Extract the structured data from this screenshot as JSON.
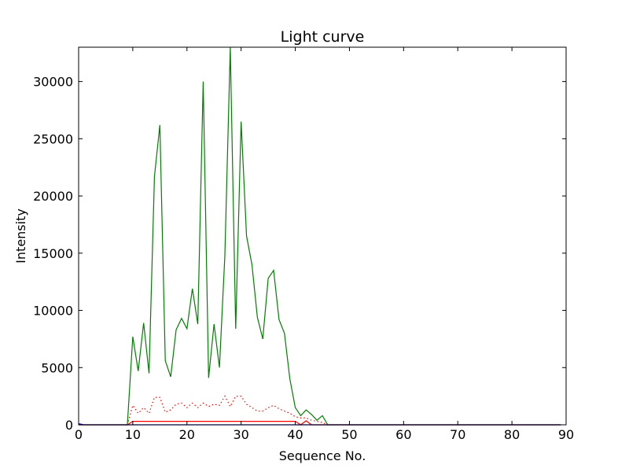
{
  "chart_data": {
    "type": "line",
    "title": "Light curve",
    "xlabel": "Sequence No.",
    "ylabel": "Intensity",
    "xlim": [
      0,
      90
    ],
    "ylim": [
      0,
      33000
    ],
    "xticks": [
      0,
      10,
      20,
      30,
      40,
      50,
      60,
      70,
      80,
      90
    ],
    "yticks": [
      0,
      5000,
      10000,
      15000,
      20000,
      25000,
      30000
    ],
    "grid": false,
    "legend": "none",
    "series": [
      {
        "color": "#008000",
        "style": "solid",
        "x": [
          0,
          1,
          2,
          3,
          4,
          5,
          6,
          7,
          8,
          9,
          10,
          11,
          12,
          13,
          14,
          15,
          16,
          17,
          18,
          19,
          20,
          21,
          22,
          23,
          24,
          25,
          26,
          27,
          28,
          29,
          30,
          31,
          32,
          33,
          34,
          35,
          36,
          37,
          38,
          39,
          40,
          41,
          42,
          43,
          44,
          45,
          46,
          47,
          48,
          49,
          50,
          51,
          52,
          53,
          54,
          55,
          56,
          57,
          58,
          59,
          60,
          61,
          62,
          63,
          64,
          65,
          66,
          67,
          68,
          69,
          70,
          71,
          72,
          73,
          74,
          75,
          76,
          77,
          78,
          79,
          80,
          81,
          82,
          83,
          84,
          85,
          86,
          87,
          88,
          89
        ],
        "y": [
          0,
          0,
          0,
          0,
          0,
          0,
          0,
          0,
          0,
          0,
          7700,
          4700,
          8900,
          4500,
          21700,
          26200,
          5600,
          4200,
          8300,
          9300,
          8400,
          11900,
          8800,
          30000,
          4100,
          8800,
          5000,
          14800,
          33000,
          8400,
          26500,
          16500,
          14000,
          9400,
          7500,
          12800,
          13500,
          9200,
          8000,
          4000,
          1500,
          800,
          1300,
          900,
          400,
          800,
          0,
          0,
          0,
          0,
          0,
          0,
          0,
          0,
          0,
          0,
          0,
          0,
          0,
          0,
          0,
          0,
          0,
          0,
          0,
          0,
          0,
          0,
          0,
          0,
          0,
          0,
          0,
          0,
          0,
          0,
          0,
          0,
          0,
          0,
          0,
          0,
          0,
          0,
          0,
          0,
          0,
          0,
          0,
          0
        ]
      },
      {
        "color": "#ff0000",
        "style": "dotted",
        "x": [
          9,
          10,
          11,
          12,
          13,
          14,
          15,
          16,
          17,
          18,
          19,
          20,
          21,
          22,
          23,
          24,
          25,
          26,
          27,
          28,
          29,
          30,
          31,
          32,
          33,
          34,
          35,
          36,
          37,
          38,
          39,
          40,
          41,
          42,
          43,
          44,
          45,
          46
        ],
        "y": [
          0,
          1700,
          1000,
          1500,
          1000,
          2400,
          2400,
          1100,
          1300,
          1800,
          1900,
          1500,
          1900,
          1500,
          1900,
          1600,
          1800,
          1700,
          2500,
          1600,
          2500,
          2500,
          1800,
          1500,
          1200,
          1200,
          1500,
          1700,
          1400,
          1200,
          1000,
          700,
          600,
          600,
          400,
          300,
          200,
          0
        ]
      },
      {
        "color": "#ff0000",
        "style": "solid",
        "x": [
          0,
          9,
          10,
          40,
          41,
          42,
          43,
          44,
          89
        ],
        "y": [
          0,
          0,
          300,
          300,
          0,
          350,
          0,
          0,
          0
        ]
      },
      {
        "color": "#0000ff",
        "style": "solid",
        "x": [
          0,
          1,
          89
        ],
        "y": [
          100,
          0,
          0
        ]
      }
    ]
  }
}
